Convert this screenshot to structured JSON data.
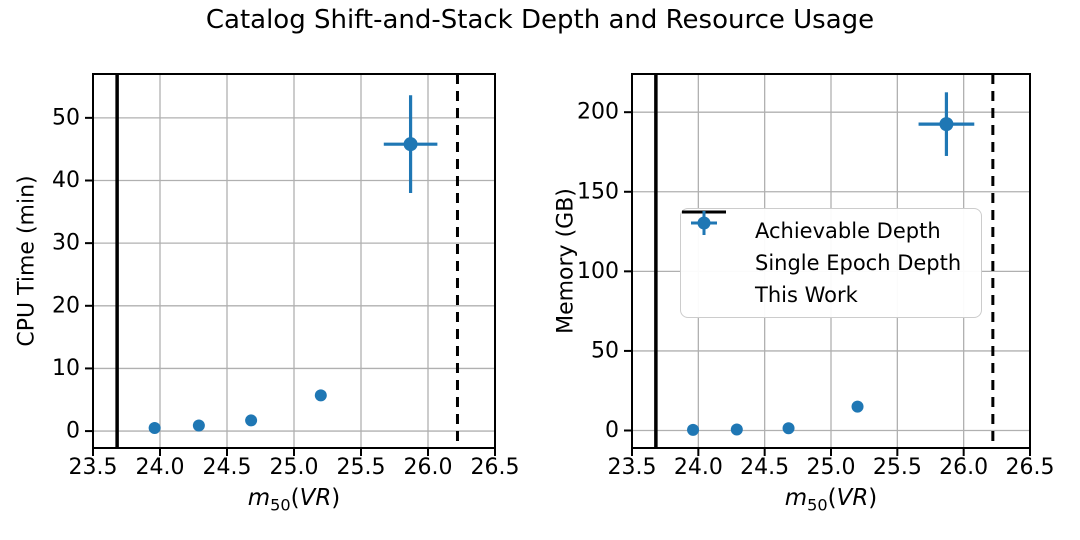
{
  "figure": {
    "title": "Catalog Shift-and-Stack Depth and Resource Usage",
    "xlabel": {
      "base": "m",
      "sub": "50",
      "paren_open": "(",
      "variable": "VR",
      "paren_close": ")"
    }
  },
  "colors": {
    "accent_blue": "#1f77b4",
    "grid": "#b0b0b0",
    "black": "#000000",
    "legend_border": "#cccccc"
  },
  "legend": {
    "items": [
      {
        "label": "Achievable Depth",
        "swatch": "dashed-line"
      },
      {
        "label": "Single Epoch Depth",
        "swatch": "solid-line"
      },
      {
        "label": "This Work",
        "swatch": "error-marker"
      }
    ]
  },
  "chart_data": [
    {
      "type": "scatter",
      "ylabel": "CPU Time (min)",
      "xlabel": "m_50(VR)",
      "xlim": [
        23.5,
        26.5
      ],
      "ylim": [
        -2.7,
        57
      ],
      "xticks": [
        23.5,
        24.0,
        24.5,
        25.0,
        25.5,
        26.0,
        26.5
      ],
      "xtick_labels": [
        "23.5",
        "24.0",
        "24.5",
        "25.0",
        "25.5",
        "26.0",
        "26.5"
      ],
      "yticks": [
        0,
        10,
        20,
        30,
        40,
        50
      ],
      "ytick_labels": [
        "0",
        "10",
        "20",
        "30",
        "40",
        "50"
      ],
      "grid": true,
      "legend_position": "none",
      "vlines": [
        {
          "x": 23.68,
          "style": "solid",
          "label": "Single Epoch Depth"
        },
        {
          "x": 26.22,
          "style": "dashed",
          "label": "Achievable Depth"
        }
      ],
      "series": [
        {
          "name": "This Work",
          "points": [
            {
              "x": 23.96,
              "y": 0.5
            },
            {
              "x": 24.29,
              "y": 0.9
            },
            {
              "x": 24.68,
              "y": 1.7
            },
            {
              "x": 25.2,
              "y": 5.7,
              "yerr": 0.9
            },
            {
              "x": 25.87,
              "y": 45.8,
              "xerr": 0.2,
              "yerr": 7.8
            }
          ]
        }
      ]
    },
    {
      "type": "scatter",
      "ylabel": "Memory (GB)",
      "xlabel": "m_50(VR)",
      "xlim": [
        23.5,
        26.5
      ],
      "ylim": [
        -11,
        224
      ],
      "xticks": [
        23.5,
        24.0,
        24.5,
        25.0,
        25.5,
        26.0,
        26.5
      ],
      "xtick_labels": [
        "23.5",
        "24.0",
        "24.5",
        "25.0",
        "25.5",
        "26.0",
        "26.5"
      ],
      "yticks": [
        0,
        50,
        100,
        150,
        200
      ],
      "ytick_labels": [
        "0",
        "50",
        "100",
        "150",
        "200"
      ],
      "grid": true,
      "legend_position": "center-left",
      "vlines": [
        {
          "x": 23.68,
          "style": "solid",
          "label": "Single Epoch Depth"
        },
        {
          "x": 26.22,
          "style": "dashed",
          "label": "Achievable Depth"
        }
      ],
      "series": [
        {
          "name": "This Work",
          "points": [
            {
              "x": 23.96,
              "y": 0.4
            },
            {
              "x": 24.29,
              "y": 0.6
            },
            {
              "x": 24.68,
              "y": 1.4
            },
            {
              "x": 25.2,
              "y": 15.0
            },
            {
              "x": 25.87,
              "y": 192.5,
              "xerr": 0.21,
              "yerr": 20
            }
          ]
        }
      ]
    }
  ]
}
